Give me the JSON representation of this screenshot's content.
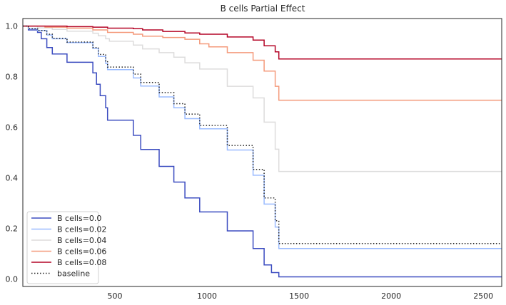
{
  "chart_data": {
    "type": "line",
    "step": true,
    "title": "B cells Partial Effect",
    "xlabel": "",
    "ylabel": "",
    "xlim": [
      0,
      2600
    ],
    "ylim": [
      -0.03,
      1.03
    ],
    "xticks": [
      500,
      1000,
      1500,
      2000,
      2500
    ],
    "xtick_labels": [
      "500",
      "1000",
      "1500",
      "2000",
      "2500"
    ],
    "yticks": [
      0.0,
      0.2,
      0.4,
      0.6,
      0.8,
      1.0
    ],
    "ytick_labels": [
      "0.0",
      "0.2",
      "0.4",
      "0.6",
      "0.8",
      "1.0"
    ],
    "grid": false,
    "legend_position": "lower-left",
    "series": [
      {
        "name": "B cells=0.0",
        "color": "#3b4cc0",
        "dash": "solid",
        "points": [
          [
            0,
            1.0
          ],
          [
            30,
            1.0
          ],
          [
            30,
            0.985
          ],
          [
            80,
            0.985
          ],
          [
            80,
            0.975
          ],
          [
            100,
            0.975
          ],
          [
            100,
            0.95
          ],
          [
            130,
            0.95
          ],
          [
            130,
            0.915
          ],
          [
            160,
            0.915
          ],
          [
            160,
            0.89
          ],
          [
            240,
            0.89
          ],
          [
            240,
            0.857
          ],
          [
            380,
            0.857
          ],
          [
            380,
            0.815
          ],
          [
            400,
            0.815
          ],
          [
            400,
            0.77
          ],
          [
            420,
            0.77
          ],
          [
            420,
            0.725
          ],
          [
            450,
            0.725
          ],
          [
            450,
            0.677
          ],
          [
            460,
            0.677
          ],
          [
            460,
            0.628
          ],
          [
            600,
            0.628
          ],
          [
            600,
            0.568
          ],
          [
            640,
            0.568
          ],
          [
            640,
            0.512
          ],
          [
            740,
            0.512
          ],
          [
            740,
            0.445
          ],
          [
            820,
            0.445
          ],
          [
            820,
            0.383
          ],
          [
            880,
            0.383
          ],
          [
            880,
            0.32
          ],
          [
            960,
            0.32
          ],
          [
            960,
            0.265
          ],
          [
            1110,
            0.265
          ],
          [
            1110,
            0.19
          ],
          [
            1250,
            0.19
          ],
          [
            1250,
            0.12
          ],
          [
            1310,
            0.12
          ],
          [
            1310,
            0.055
          ],
          [
            1350,
            0.055
          ],
          [
            1350,
            0.025
          ],
          [
            1390,
            0.025
          ],
          [
            1390,
            0.008
          ],
          [
            2600,
            0.008
          ]
        ]
      },
      {
        "name": "B cells=0.02",
        "color": "#9abbff",
        "dash": "solid",
        "points": [
          [
            0,
            1.0
          ],
          [
            30,
            1.0
          ],
          [
            30,
            0.99
          ],
          [
            80,
            0.99
          ],
          [
            80,
            0.983
          ],
          [
            130,
            0.983
          ],
          [
            130,
            0.965
          ],
          [
            160,
            0.965
          ],
          [
            160,
            0.95
          ],
          [
            240,
            0.95
          ],
          [
            240,
            0.935
          ],
          [
            380,
            0.935
          ],
          [
            380,
            0.912
          ],
          [
            410,
            0.912
          ],
          [
            410,
            0.88
          ],
          [
            450,
            0.88
          ],
          [
            450,
            0.852
          ],
          [
            460,
            0.852
          ],
          [
            460,
            0.828
          ],
          [
            600,
            0.828
          ],
          [
            600,
            0.795
          ],
          [
            640,
            0.795
          ],
          [
            640,
            0.763
          ],
          [
            740,
            0.763
          ],
          [
            740,
            0.72
          ],
          [
            820,
            0.72
          ],
          [
            820,
            0.677
          ],
          [
            880,
            0.677
          ],
          [
            880,
            0.634
          ],
          [
            960,
            0.634
          ],
          [
            960,
            0.594
          ],
          [
            1110,
            0.594
          ],
          [
            1110,
            0.51
          ],
          [
            1250,
            0.51
          ],
          [
            1250,
            0.41
          ],
          [
            1310,
            0.41
          ],
          [
            1310,
            0.296
          ],
          [
            1370,
            0.296
          ],
          [
            1370,
            0.205
          ],
          [
            1390,
            0.205
          ],
          [
            1390,
            0.12
          ],
          [
            2600,
            0.12
          ]
        ]
      },
      {
        "name": "B cells=0.04",
        "color": "#dddcdc",
        "dash": "solid",
        "points": [
          [
            0,
            1.0
          ],
          [
            80,
            1.0
          ],
          [
            80,
            0.993
          ],
          [
            160,
            0.993
          ],
          [
            160,
            0.987
          ],
          [
            240,
            0.987
          ],
          [
            240,
            0.98
          ],
          [
            380,
            0.98
          ],
          [
            380,
            0.972
          ],
          [
            410,
            0.972
          ],
          [
            410,
            0.962
          ],
          [
            450,
            0.962
          ],
          [
            450,
            0.95
          ],
          [
            470,
            0.95
          ],
          [
            470,
            0.94
          ],
          [
            600,
            0.94
          ],
          [
            600,
            0.925
          ],
          [
            650,
            0.925
          ],
          [
            650,
            0.91
          ],
          [
            740,
            0.91
          ],
          [
            740,
            0.895
          ],
          [
            820,
            0.895
          ],
          [
            820,
            0.877
          ],
          [
            880,
            0.877
          ],
          [
            880,
            0.855
          ],
          [
            960,
            0.855
          ],
          [
            960,
            0.83
          ],
          [
            1110,
            0.83
          ],
          [
            1110,
            0.762
          ],
          [
            1250,
            0.762
          ],
          [
            1250,
            0.716
          ],
          [
            1310,
            0.716
          ],
          [
            1310,
            0.62
          ],
          [
            1370,
            0.62
          ],
          [
            1370,
            0.513
          ],
          [
            1390,
            0.513
          ],
          [
            1390,
            0.425
          ],
          [
            2600,
            0.425
          ]
        ]
      },
      {
        "name": "B cells=0.06",
        "color": "#f49a7b",
        "dash": "solid",
        "points": [
          [
            0,
            1.0
          ],
          [
            120,
            1.0
          ],
          [
            120,
            0.996
          ],
          [
            240,
            0.996
          ],
          [
            240,
            0.992
          ],
          [
            380,
            0.992
          ],
          [
            380,
            0.985
          ],
          [
            460,
            0.985
          ],
          [
            460,
            0.975
          ],
          [
            600,
            0.975
          ],
          [
            600,
            0.968
          ],
          [
            650,
            0.968
          ],
          [
            650,
            0.96
          ],
          [
            760,
            0.96
          ],
          [
            760,
            0.955
          ],
          [
            880,
            0.955
          ],
          [
            880,
            0.948
          ],
          [
            960,
            0.948
          ],
          [
            960,
            0.93
          ],
          [
            1010,
            0.93
          ],
          [
            1010,
            0.918
          ],
          [
            1110,
            0.918
          ],
          [
            1110,
            0.895
          ],
          [
            1250,
            0.895
          ],
          [
            1250,
            0.865
          ],
          [
            1310,
            0.865
          ],
          [
            1310,
            0.822
          ],
          [
            1370,
            0.822
          ],
          [
            1370,
            0.762
          ],
          [
            1390,
            0.762
          ],
          [
            1390,
            0.707
          ],
          [
            2600,
            0.707
          ]
        ]
      },
      {
        "name": "B cells=0.08",
        "color": "#b40426",
        "dash": "solid",
        "points": [
          [
            0,
            1.0
          ],
          [
            240,
            1.0
          ],
          [
            240,
            0.998
          ],
          [
            380,
            0.998
          ],
          [
            380,
            0.996
          ],
          [
            460,
            0.996
          ],
          [
            460,
            0.992
          ],
          [
            600,
            0.992
          ],
          [
            600,
            0.99
          ],
          [
            650,
            0.99
          ],
          [
            650,
            0.985
          ],
          [
            760,
            0.985
          ],
          [
            760,
            0.979
          ],
          [
            880,
            0.979
          ],
          [
            880,
            0.973
          ],
          [
            960,
            0.973
          ],
          [
            960,
            0.968
          ],
          [
            1110,
            0.968
          ],
          [
            1110,
            0.957
          ],
          [
            1250,
            0.957
          ],
          [
            1250,
            0.945
          ],
          [
            1310,
            0.945
          ],
          [
            1310,
            0.922
          ],
          [
            1370,
            0.922
          ],
          [
            1370,
            0.898
          ],
          [
            1390,
            0.898
          ],
          [
            1390,
            0.87
          ],
          [
            2600,
            0.87
          ]
        ]
      },
      {
        "name": "baseline",
        "color": "#262626",
        "dash": "dotted",
        "points": [
          [
            0,
            1.0
          ],
          [
            30,
            1.0
          ],
          [
            30,
            0.99
          ],
          [
            80,
            0.99
          ],
          [
            80,
            0.983
          ],
          [
            130,
            0.983
          ],
          [
            130,
            0.968
          ],
          [
            160,
            0.968
          ],
          [
            160,
            0.952
          ],
          [
            240,
            0.952
          ],
          [
            240,
            0.937
          ],
          [
            380,
            0.937
          ],
          [
            380,
            0.915
          ],
          [
            410,
            0.915
          ],
          [
            410,
            0.888
          ],
          [
            450,
            0.888
          ],
          [
            450,
            0.862
          ],
          [
            460,
            0.862
          ],
          [
            460,
            0.838
          ],
          [
            600,
            0.838
          ],
          [
            600,
            0.81
          ],
          [
            640,
            0.81
          ],
          [
            640,
            0.777
          ],
          [
            740,
            0.777
          ],
          [
            740,
            0.737
          ],
          [
            820,
            0.737
          ],
          [
            820,
            0.693
          ],
          [
            880,
            0.693
          ],
          [
            880,
            0.652
          ],
          [
            960,
            0.652
          ],
          [
            960,
            0.607
          ],
          [
            1110,
            0.607
          ],
          [
            1110,
            0.528
          ],
          [
            1250,
            0.528
          ],
          [
            1250,
            0.433
          ],
          [
            1310,
            0.433
          ],
          [
            1310,
            0.32
          ],
          [
            1370,
            0.32
          ],
          [
            1370,
            0.23
          ],
          [
            1390,
            0.23
          ],
          [
            1390,
            0.14
          ],
          [
            2600,
            0.14
          ]
        ]
      }
    ]
  }
}
